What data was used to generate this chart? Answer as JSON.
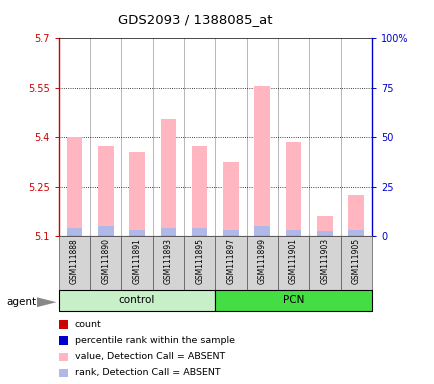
{
  "title": "GDS2093 / 1388085_at",
  "samples": [
    "GSM111888",
    "GSM111890",
    "GSM111891",
    "GSM111893",
    "GSM111895",
    "GSM111897",
    "GSM111899",
    "GSM111901",
    "GSM111903",
    "GSM111905"
  ],
  "pink_values": [
    5.4,
    5.375,
    5.355,
    5.455,
    5.375,
    5.325,
    5.555,
    5.385,
    5.16,
    5.225
  ],
  "blue_values": [
    5.125,
    5.13,
    5.12,
    5.125,
    5.125,
    5.12,
    5.13,
    5.12,
    5.115,
    5.12
  ],
  "ymin": 5.1,
  "ymax": 5.7,
  "yticks": [
    5.1,
    5.25,
    5.4,
    5.55,
    5.7
  ],
  "ytick_labels": [
    "5.1",
    "5.25",
    "5.4",
    "5.55",
    "5.7"
  ],
  "y2ticks": [
    0,
    25,
    50,
    75,
    100
  ],
  "y2tick_labels": [
    "0",
    "25",
    "50",
    "75",
    "100%"
  ],
  "bar_width": 0.5,
  "pink_color": "#ffb6c1",
  "blue_color": "#b0b8e8",
  "ctrl_color": "#c8f0c8",
  "pcn_color": "#44dd44",
  "legend_items": [
    {
      "color": "#cc0000",
      "label": "count"
    },
    {
      "color": "#0000cc",
      "label": "percentile rank within the sample"
    },
    {
      "color": "#ffb6c1",
      "label": "value, Detection Call = ABSENT"
    },
    {
      "color": "#b0b8e8",
      "label": "rank, Detection Call = ABSENT"
    }
  ],
  "grid_lines": [
    5.25,
    5.4,
    5.55
  ],
  "left_axis_color": "#cc0000",
  "right_axis_color": "#0000cc"
}
